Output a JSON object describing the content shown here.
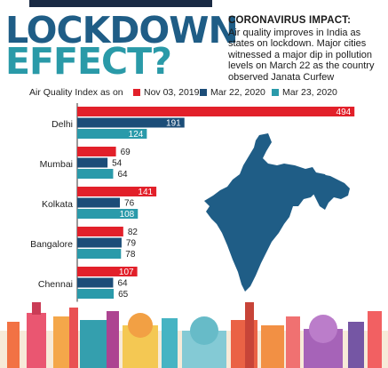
{
  "header": {
    "title_line1": "LOCKDOWN",
    "title_line2": "EFFECT?",
    "impact_heading": "CORONAVIRUS IMPACT:",
    "impact_text": "Air quality improves in India as states on lockdown. Major cities witnessed a major dip in pollution levels on March 22 as the country observed Janata Curfew"
  },
  "colors": {
    "nov": "#e2202a",
    "mar22": "#1c4d78",
    "mar23": "#2a9aaa",
    "map": "#1f5d86"
  },
  "chart_data": {
    "type": "bar",
    "orientation": "horizontal",
    "ylabel": "Air Quality Index as on",
    "categories": [
      "Delhi",
      "Mumbai",
      "Kolkata",
      "Bangalore",
      "Chennai"
    ],
    "series": [
      {
        "name": "Nov 03, 2019",
        "values": [
          494,
          69,
          141,
          82,
          107
        ]
      },
      {
        "name": "Mar 22, 2020",
        "values": [
          191,
          54,
          76,
          79,
          64
        ]
      },
      {
        "name": "Mar 23, 2020",
        "values": [
          124,
          64,
          108,
          78,
          65
        ]
      }
    ],
    "xlim": [
      0,
      500
    ],
    "legend": "top",
    "grid": false
  }
}
